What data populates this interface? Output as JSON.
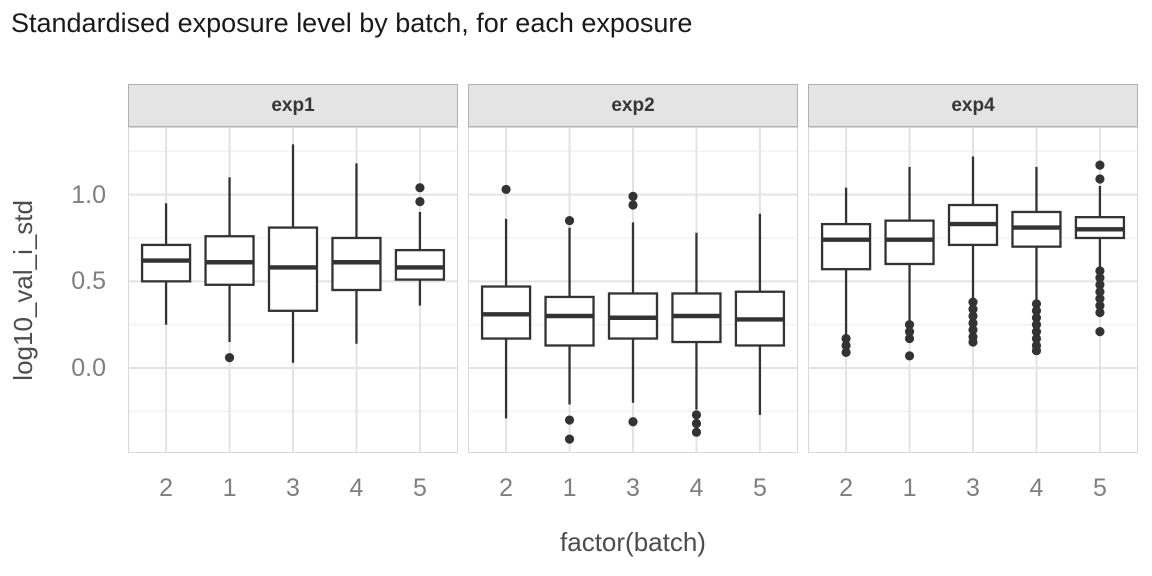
{
  "chart_data": {
    "type": "boxplot",
    "title": "Standardised exposure level by batch, for each exposure",
    "xlabel": "factor(batch)",
    "ylabel": "log10_val_i_std",
    "categories": [
      "2",
      "1",
      "3",
      "4",
      "5"
    ],
    "ylim": [
      -0.49,
      1.39
    ],
    "grid": "major and minor horizontal, major vertical at each category",
    "legend": "none",
    "y_major_ticks": [
      {
        "label": "1.0",
        "value": 1.0
      },
      {
        "label": "0.5",
        "value": 0.5
      },
      {
        "label": "0.0",
        "value": 0.0
      }
    ],
    "y_minor_gridlines": [
      -0.25,
      0.25,
      0.75,
      1.25
    ],
    "facets": [
      {
        "label": "exp1",
        "boxes": [
          {
            "batch": "2",
            "whisker_low": 0.25,
            "q1": 0.5,
            "median": 0.62,
            "q3": 0.71,
            "whisker_high": 0.95,
            "outliers": []
          },
          {
            "batch": "1",
            "whisker_low": 0.15,
            "q1": 0.48,
            "median": 0.61,
            "q3": 0.76,
            "whisker_high": 1.1,
            "outliers": [
              0.06
            ]
          },
          {
            "batch": "3",
            "whisker_low": 0.03,
            "q1": 0.33,
            "median": 0.58,
            "q3": 0.81,
            "whisker_high": 1.29,
            "outliers": []
          },
          {
            "batch": "4",
            "whisker_low": 0.14,
            "q1": 0.45,
            "median": 0.61,
            "q3": 0.75,
            "whisker_high": 1.18,
            "outliers": []
          },
          {
            "batch": "5",
            "whisker_low": 0.36,
            "q1": 0.51,
            "median": 0.58,
            "q3": 0.68,
            "whisker_high": 0.9,
            "outliers": [
              1.04,
              0.96
            ]
          }
        ]
      },
      {
        "label": "exp2",
        "boxes": [
          {
            "batch": "2",
            "whisker_low": -0.29,
            "q1": 0.17,
            "median": 0.31,
            "q3": 0.47,
            "whisker_high": 0.86,
            "outliers": [
              1.03
            ]
          },
          {
            "batch": "1",
            "whisker_low": -0.21,
            "q1": 0.13,
            "median": 0.3,
            "q3": 0.41,
            "whisker_high": 0.81,
            "outliers": [
              0.85,
              -0.3,
              -0.41
            ]
          },
          {
            "batch": "3",
            "whisker_low": -0.2,
            "q1": 0.17,
            "median": 0.29,
            "q3": 0.43,
            "whisker_high": 0.84,
            "outliers": [
              0.99,
              0.94,
              -0.31
            ]
          },
          {
            "batch": "4",
            "whisker_low": -0.24,
            "q1": 0.15,
            "median": 0.3,
            "q3": 0.43,
            "whisker_high": 0.78,
            "outliers": [
              -0.27,
              -0.32,
              -0.37
            ]
          },
          {
            "batch": "5",
            "whisker_low": -0.27,
            "q1": 0.13,
            "median": 0.28,
            "q3": 0.44,
            "whisker_high": 0.89,
            "outliers": []
          }
        ]
      },
      {
        "label": "exp4",
        "boxes": [
          {
            "batch": "2",
            "whisker_low": 0.19,
            "q1": 0.57,
            "median": 0.74,
            "q3": 0.83,
            "whisker_high": 1.04,
            "outliers": [
              0.17,
              0.13,
              0.09
            ]
          },
          {
            "batch": "1",
            "whisker_low": 0.27,
            "q1": 0.6,
            "median": 0.74,
            "q3": 0.85,
            "whisker_high": 1.16,
            "outliers": [
              0.25,
              0.21,
              0.17,
              0.07
            ]
          },
          {
            "batch": "3",
            "whisker_low": 0.4,
            "q1": 0.71,
            "median": 0.83,
            "q3": 0.94,
            "whisker_high": 1.22,
            "outliers": [
              0.38,
              0.34,
              0.3,
              0.26,
              0.22,
              0.18,
              0.15
            ]
          },
          {
            "batch": "4",
            "whisker_low": 0.39,
            "q1": 0.7,
            "median": 0.81,
            "q3": 0.9,
            "whisker_high": 1.16,
            "outliers": [
              0.37,
              0.33,
              0.29,
              0.25,
              0.21,
              0.17,
              0.13,
              0.1
            ]
          },
          {
            "batch": "5",
            "whisker_low": 0.58,
            "q1": 0.75,
            "median": 0.8,
            "q3": 0.87,
            "whisker_high": 1.05,
            "outliers": [
              1.17,
              1.09,
              0.56,
              0.52,
              0.48,
              0.44,
              0.4,
              0.36,
              0.32,
              0.21
            ]
          }
        ]
      }
    ]
  },
  "style": {
    "title_color": "#1a1a1a",
    "axis_title_color": "#4d4d4d",
    "tick_label_color": "#7f7f7f",
    "strip_bg": "#e4e4e4",
    "strip_border": "#b0b0b0",
    "strip_text_color": "#363636",
    "panel_border": "#d8d8d8",
    "grid_major": "#e3e3e3",
    "grid_minor": "#f1f1f1",
    "box_stroke": "#333333",
    "box_fill": "#ffffff"
  }
}
